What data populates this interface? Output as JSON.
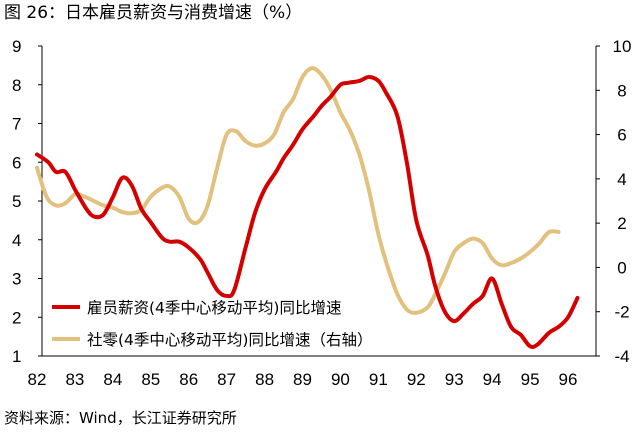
{
  "title": "图 26：日本雇员薪资与消费增速（%）",
  "source": "资料来源：Wind，长江证券研究所",
  "chart_data": {
    "type": "line",
    "x_tick_labels": [
      "82",
      "83",
      "84",
      "85",
      "86",
      "87",
      "88",
      "89",
      "90",
      "91",
      "92",
      "93",
      "94",
      "95",
      "96"
    ],
    "left_axis": {
      "min": 1,
      "max": 9,
      "ticks": [
        1,
        2,
        3,
        4,
        5,
        6,
        7,
        8,
        9
      ]
    },
    "right_axis": {
      "min": -4,
      "max": 10,
      "ticks": [
        -4,
        -2,
        0,
        2,
        4,
        6,
        8,
        10
      ]
    },
    "legend_position": "bottom-left",
    "series": [
      {
        "name": "雇员薪资(4季中心移动平均)同比增速",
        "axis": "left",
        "color": "#d40000",
        "points": [
          [
            82.0,
            6.2
          ],
          [
            82.3,
            6.0
          ],
          [
            82.5,
            5.75
          ],
          [
            82.75,
            5.75
          ],
          [
            83.0,
            5.3
          ],
          [
            83.3,
            4.8
          ],
          [
            83.5,
            4.6
          ],
          [
            83.75,
            4.65
          ],
          [
            84.0,
            5.1
          ],
          [
            84.25,
            5.6
          ],
          [
            84.5,
            5.4
          ],
          [
            84.75,
            4.8
          ],
          [
            85.0,
            4.45
          ],
          [
            85.3,
            4.05
          ],
          [
            85.5,
            3.95
          ],
          [
            85.75,
            3.95
          ],
          [
            86.0,
            3.8
          ],
          [
            86.3,
            3.5
          ],
          [
            86.5,
            3.15
          ],
          [
            86.75,
            2.7
          ],
          [
            87.0,
            2.55
          ],
          [
            87.2,
            2.7
          ],
          [
            87.5,
            3.8
          ],
          [
            87.75,
            4.7
          ],
          [
            88.0,
            5.3
          ],
          [
            88.3,
            5.75
          ],
          [
            88.5,
            6.1
          ],
          [
            88.75,
            6.45
          ],
          [
            89.0,
            6.85
          ],
          [
            89.3,
            7.2
          ],
          [
            89.5,
            7.45
          ],
          [
            89.75,
            7.7
          ],
          [
            90.0,
            8.0
          ],
          [
            90.2,
            8.05
          ],
          [
            90.5,
            8.1
          ],
          [
            90.75,
            8.2
          ],
          [
            91.0,
            8.1
          ],
          [
            91.2,
            7.8
          ],
          [
            91.5,
            7.2
          ],
          [
            91.75,
            6.0
          ],
          [
            92.0,
            4.5
          ],
          [
            92.3,
            3.6
          ],
          [
            92.5,
            2.8
          ],
          [
            92.75,
            2.15
          ],
          [
            93.0,
            1.9
          ],
          [
            93.25,
            2.1
          ],
          [
            93.5,
            2.35
          ],
          [
            93.75,
            2.55
          ],
          [
            94.0,
            3.0
          ],
          [
            94.25,
            2.35
          ],
          [
            94.5,
            1.75
          ],
          [
            94.75,
            1.55
          ],
          [
            95.0,
            1.25
          ],
          [
            95.2,
            1.3
          ],
          [
            95.5,
            1.6
          ],
          [
            95.75,
            1.75
          ],
          [
            96.0,
            2.0
          ],
          [
            96.25,
            2.5
          ]
        ]
      },
      {
        "name": "社零(4季中心移动平均)同比增速（右轴）",
        "axis": "right",
        "color": "#e2c07e",
        "points": [
          [
            82.0,
            4.5
          ],
          [
            82.25,
            3.2
          ],
          [
            82.5,
            2.8
          ],
          [
            82.75,
            2.9
          ],
          [
            83.0,
            3.3
          ],
          [
            83.25,
            3.2
          ],
          [
            83.5,
            3.0
          ],
          [
            83.75,
            2.8
          ],
          [
            84.0,
            2.7
          ],
          [
            84.25,
            2.5
          ],
          [
            84.5,
            2.45
          ],
          [
            84.75,
            2.6
          ],
          [
            85.0,
            3.2
          ],
          [
            85.3,
            3.6
          ],
          [
            85.5,
            3.65
          ],
          [
            85.75,
            3.2
          ],
          [
            86.0,
            2.2
          ],
          [
            86.25,
            2.05
          ],
          [
            86.5,
            2.8
          ],
          [
            86.75,
            4.5
          ],
          [
            87.0,
            6.0
          ],
          [
            87.25,
            6.15
          ],
          [
            87.5,
            5.7
          ],
          [
            87.75,
            5.5
          ],
          [
            88.0,
            5.6
          ],
          [
            88.25,
            6.0
          ],
          [
            88.5,
            7.0
          ],
          [
            88.75,
            7.6
          ],
          [
            89.0,
            8.6
          ],
          [
            89.25,
            9.0
          ],
          [
            89.5,
            8.7
          ],
          [
            89.75,
            8.0
          ],
          [
            90.0,
            7.0
          ],
          [
            90.25,
            6.2
          ],
          [
            90.5,
            5.1
          ],
          [
            90.75,
            3.5
          ],
          [
            91.0,
            1.5
          ],
          [
            91.25,
            0.0
          ],
          [
            91.5,
            -1.2
          ],
          [
            91.75,
            -1.9
          ],
          [
            92.0,
            -2.05
          ],
          [
            92.3,
            -1.8
          ],
          [
            92.5,
            -1.2
          ],
          [
            92.75,
            -0.3
          ],
          [
            93.0,
            0.7
          ],
          [
            93.25,
            1.1
          ],
          [
            93.5,
            1.3
          ],
          [
            93.75,
            1.1
          ],
          [
            94.0,
            0.4
          ],
          [
            94.25,
            0.1
          ],
          [
            94.5,
            0.2
          ],
          [
            94.75,
            0.4
          ],
          [
            95.0,
            0.7
          ],
          [
            95.25,
            1.1
          ],
          [
            95.5,
            1.6
          ],
          [
            95.75,
            1.6
          ]
        ]
      }
    ]
  }
}
